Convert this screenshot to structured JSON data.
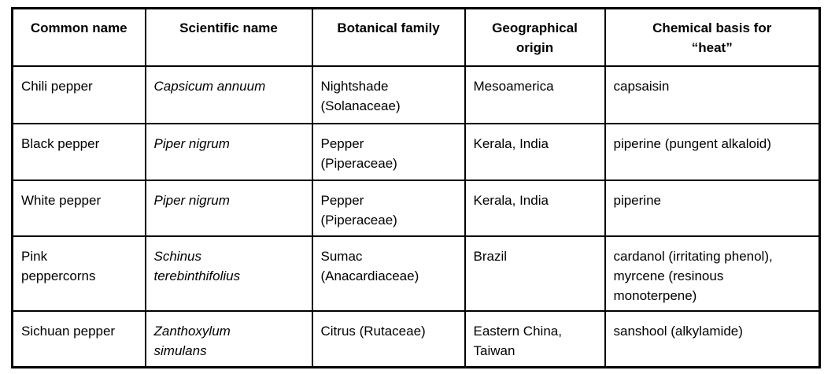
{
  "table": {
    "columns": [
      "Common name",
      "Scientific name",
      "Botanical family",
      "Geographical\norigin",
      "Chemical basis for\n“heat”"
    ],
    "rows": [
      [
        "Chili pepper",
        "Capsicum annuum",
        "Nightshade\n(Solanaceae)",
        "Mesoamerica",
        "capsaisin"
      ],
      [
        "Black pepper",
        "Piper nigrum",
        "Pepper\n(Piperaceae)",
        "Kerala, India",
        "piperine (pungent alkaloid)"
      ],
      [
        "White pepper",
        "Piper nigrum",
        "Pepper\n(Piperaceae)",
        "Kerala, India",
        "piperine"
      ],
      [
        "Pink\npeppercorns",
        "Schinus\nterebinthifolius",
        "Sumac\n(Anacardiaceae)",
        "Brazil",
        "cardanol (irritating phenol),\nmyrcene (resinous\nmonoterpene)"
      ],
      [
        "Sichuan pepper",
        "Zanthoxylum\nsimulans",
        "Citrus (Rutaceae)",
        "Eastern China,\nTaiwan",
        "sanshool (alkylamide)"
      ]
    ],
    "colors": {
      "border": "#000000",
      "text": "#000000",
      "background": "#ffffff"
    }
  }
}
